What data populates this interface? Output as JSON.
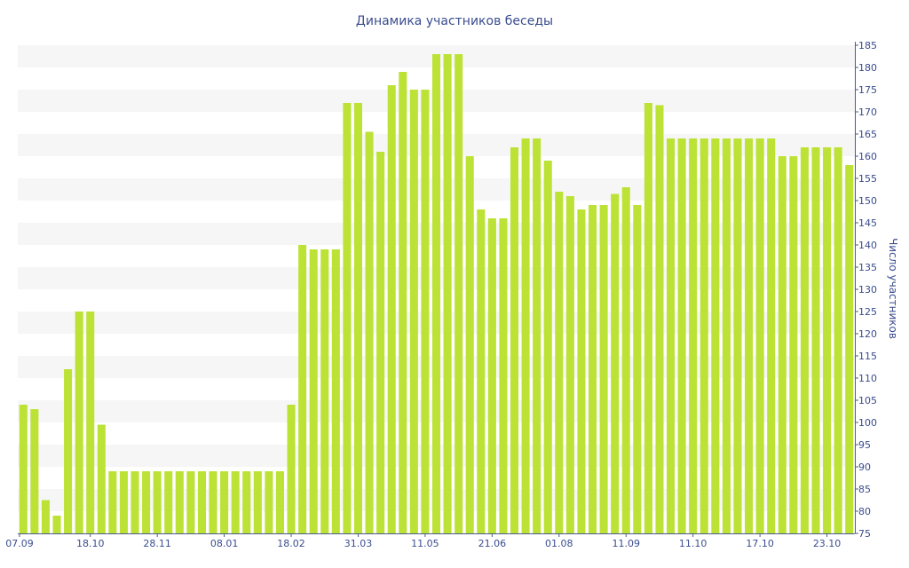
{
  "chart_data": {
    "type": "bar",
    "title": "Динамика участников беседы",
    "ylabel": "Число участников",
    "xlabel": "",
    "ylim": [
      75,
      185
    ],
    "y_ticks": [
      75,
      80,
      85,
      90,
      95,
      100,
      105,
      110,
      115,
      120,
      125,
      130,
      135,
      140,
      145,
      150,
      155,
      160,
      165,
      170,
      175,
      180,
      185
    ],
    "y_axis_side": "right",
    "grid": "horizontal alternating bands",
    "bar_color": "#bce236",
    "x_tick_labels": [
      {
        "label": "07.09",
        "index": 0
      },
      {
        "label": "18.10",
        "index": 6
      },
      {
        "label": "28.11",
        "index": 12
      },
      {
        "label": "08.01",
        "index": 18
      },
      {
        "label": "18.02",
        "index": 24
      },
      {
        "label": "31.03",
        "index": 30
      },
      {
        "label": "11.05",
        "index": 36
      },
      {
        "label": "21.06",
        "index": 42
      },
      {
        "label": "01.08",
        "index": 48
      },
      {
        "label": "11.09",
        "index": 54
      },
      {
        "label": "11.10",
        "index": 60
      },
      {
        "label": "17.10",
        "index": 66
      },
      {
        "label": "23.10",
        "index": 72
      }
    ],
    "values": [
      104,
      103,
      82.5,
      79,
      112,
      125,
      125,
      99.5,
      89,
      89,
      89,
      89,
      89,
      89,
      89,
      89,
      89,
      89,
      89,
      89,
      89,
      89,
      89,
      89,
      104,
      140,
      139,
      139,
      139,
      172,
      172,
      165.5,
      161,
      176,
      179,
      175,
      175,
      183,
      183,
      183,
      160,
      148,
      146,
      146,
      162,
      164,
      164,
      159,
      152,
      151,
      148,
      149,
      149,
      151.5,
      153,
      149,
      172,
      171.5,
      164,
      164,
      164,
      164,
      164,
      164,
      164,
      164,
      164,
      164,
      160,
      160,
      162,
      162,
      162,
      162,
      158
    ]
  }
}
